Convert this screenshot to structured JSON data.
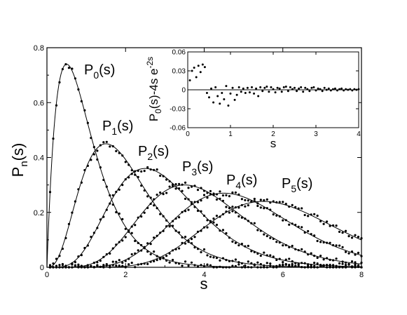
{
  "chart_data": [
    {
      "type": "line",
      "xlabel_main": "s",
      "xlabel_sub": "",
      "ylabel_main": "P",
      "ylabel_sub": "n",
      "ylabel_tail": "(s)",
      "xlim": [
        0,
        8
      ],
      "ylim": [
        0,
        0.8
      ],
      "x_ticks": [
        "0",
        "2",
        "4",
        "6",
        "8"
      ],
      "y_ticks": [
        "0",
        "0.2",
        "0.4",
        "0.6",
        "0.8"
      ],
      "series": [
        {
          "label_main": "P",
          "label_sub": "0",
          "label_tail": "(s)",
          "peak_x": 0.5,
          "peak_y": 0.74
        },
        {
          "label_main": "P",
          "label_sub": "1",
          "label_tail": "(s)",
          "peak_x": 1.5,
          "peak_y": 0.45
        },
        {
          "label_main": "P",
          "label_sub": "2",
          "label_tail": "(s)",
          "peak_x": 2.5,
          "peak_y": 0.36
        },
        {
          "label_main": "P",
          "label_sub": "3",
          "label_tail": "(s)",
          "peak_x": 3.5,
          "peak_y": 0.3
        },
        {
          "label_main": "P",
          "label_sub": "4",
          "label_tail": "(s)",
          "peak_x": 4.5,
          "peak_y": 0.27
        },
        {
          "label_main": "P",
          "label_sub": "5",
          "label_tail": "(s)",
          "peak_x": 5.5,
          "peak_y": 0.24
        }
      ]
    },
    {
      "type": "scatter",
      "xlabel": "s",
      "ylabel_parts": [
        "P",
        "0",
        "(s)-4s e",
        "-2s"
      ],
      "xlim": [
        0,
        4
      ],
      "ylim": [
        -0.06,
        0.06
      ],
      "x_ticks": [
        "0",
        "1",
        "2",
        "3",
        "4"
      ],
      "y_ticks": [
        "-0.06",
        "-0.03",
        "0",
        "0.03",
        "0.06"
      ],
      "points": [
        [
          0.05,
          0.015
        ],
        [
          0.1,
          0.03
        ],
        [
          0.15,
          0.035
        ],
        [
          0.2,
          0.02
        ],
        [
          0.25,
          0.038
        ],
        [
          0.3,
          0.028
        ],
        [
          0.35,
          0.04
        ],
        [
          0.4,
          0.036
        ],
        [
          0.45,
          -0.005
        ],
        [
          0.5,
          -0.012
        ],
        [
          0.55,
          0.002
        ],
        [
          0.6,
          -0.02
        ],
        [
          0.65,
          0.004
        ],
        [
          0.7,
          -0.01
        ],
        [
          0.75,
          -0.022
        ],
        [
          0.8,
          -0.005
        ],
        [
          0.85,
          -0.015
        ],
        [
          0.9,
          0.006
        ],
        [
          0.95,
          -0.025
        ],
        [
          1.0,
          -0.006
        ],
        [
          1.05,
          0.003
        ],
        [
          1.1,
          -0.016
        ],
        [
          1.15,
          -0.008
        ],
        [
          1.2,
          0.004
        ],
        [
          1.25,
          -0.003
        ],
        [
          1.3,
          0.002
        ],
        [
          1.35,
          -0.005
        ],
        [
          1.4,
          0.003
        ],
        [
          1.45,
          -0.004
        ],
        [
          1.5,
          0.004
        ],
        [
          1.55,
          -0.006
        ],
        [
          1.6,
          0.002
        ],
        [
          1.65,
          -0.01
        ],
        [
          1.7,
          0.004
        ],
        [
          1.75,
          -0.002
        ],
        [
          1.8,
          0.003
        ],
        [
          1.85,
          0.005
        ],
        [
          1.9,
          -0.003
        ],
        [
          1.95,
          0.004
        ],
        [
          2.0,
          0.001
        ],
        [
          2.05,
          -0.004
        ],
        [
          2.1,
          0.003
        ],
        [
          2.15,
          0.002
        ],
        [
          2.2,
          -0.003
        ],
        [
          2.25,
          0.004
        ],
        [
          2.3,
          0.005
        ],
        [
          2.35,
          -0.002
        ],
        [
          2.4,
          0.004
        ],
        [
          2.45,
          0.001
        ],
        [
          2.5,
          0.003
        ],
        [
          2.55,
          -0.002
        ],
        [
          2.6,
          0.002
        ],
        [
          2.65,
          0.004
        ],
        [
          2.7,
          -0.003
        ],
        [
          2.75,
          0.003
        ],
        [
          2.8,
          0.001
        ],
        [
          2.85,
          -0.002
        ],
        [
          2.9,
          0.003
        ],
        [
          2.95,
          0.004
        ],
        [
          3.0,
          -0.001
        ],
        [
          3.05,
          0.002
        ],
        [
          3.1,
          0.001
        ],
        [
          3.15,
          -0.002
        ],
        [
          3.2,
          0.003
        ],
        [
          3.25,
          0.0
        ],
        [
          3.3,
          0.002
        ],
        [
          3.35,
          -0.001
        ],
        [
          3.4,
          0.001
        ],
        [
          3.45,
          0.002
        ],
        [
          3.5,
          -0.001
        ],
        [
          3.55,
          0.001
        ],
        [
          3.6,
          0.002
        ],
        [
          3.65,
          -0.001
        ],
        [
          3.7,
          0.001
        ],
        [
          3.75,
          0.0
        ],
        [
          3.8,
          0.001
        ],
        [
          3.85,
          -0.001
        ],
        [
          3.9,
          0.001
        ],
        [
          3.95,
          0.0
        ],
        [
          4.0,
          0.001
        ]
      ]
    }
  ]
}
